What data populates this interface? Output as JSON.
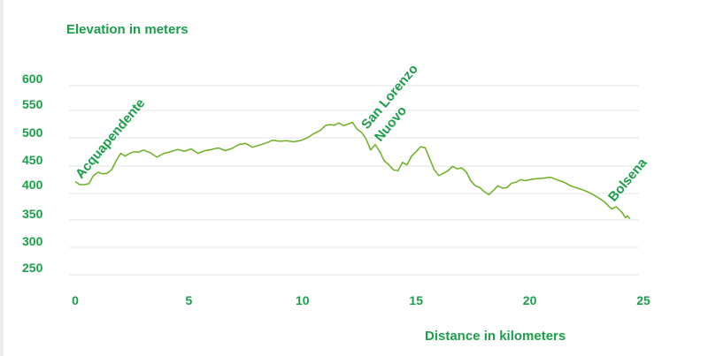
{
  "colors": {
    "text": "#1a9e4a",
    "line": "#6ab023",
    "grid": "#e3e3e3"
  },
  "chart_data": {
    "type": "line",
    "title": "",
    "xlabel": "Distance in kilometers",
    "ylabel": "Elevation in meters",
    "xlim": [
      0,
      25
    ],
    "ylim": [
      250,
      600
    ],
    "xticks": [
      "0",
      "5",
      "10",
      "15",
      "20",
      "25"
    ],
    "yticks": [
      "600",
      "550",
      "500",
      "450",
      "400",
      "350",
      "300",
      "250"
    ],
    "grid": true,
    "series": [
      {
        "x": [
          0,
          0.2,
          0.4,
          0.6,
          0.8,
          1.0,
          1.2,
          1.4,
          1.6,
          1.8,
          2.0,
          2.2,
          2.4,
          2.6,
          2.8,
          3.0,
          3.3,
          3.6,
          3.9,
          4.2,
          4.5,
          4.8,
          5.1,
          5.4,
          5.7,
          6.0,
          6.3,
          6.6,
          6.9,
          7.2,
          7.5,
          7.8,
          8.1,
          8.4,
          8.7,
          9.0,
          9.3,
          9.6,
          9.9,
          10.2,
          10.5,
          10.8,
          11.0,
          11.2,
          11.4,
          11.6,
          11.8,
          12.0,
          12.2,
          12.4,
          12.6,
          12.8,
          13.0,
          13.2,
          13.4,
          13.6,
          13.8,
          14.0,
          14.2,
          14.4,
          14.6,
          14.8,
          15.0,
          15.2,
          15.4,
          15.6,
          15.8,
          16.0,
          16.2,
          16.4,
          16.6,
          16.8,
          17.0,
          17.2,
          17.4,
          17.6,
          17.8,
          18.0,
          18.2,
          18.4,
          18.6,
          18.8,
          19.0,
          19.2,
          19.4,
          19.6,
          19.8,
          20.0,
          20.3,
          20.6,
          20.9,
          21.2,
          21.5,
          21.8,
          22.1,
          22.4,
          22.7,
          23.0,
          23.3,
          23.6,
          23.8,
          24.0,
          24.1,
          24.2,
          24.3,
          24.4
        ],
        "values": [
          406,
          400,
          400,
          402,
          418,
          425,
          422,
          423,
          430,
          448,
          462,
          457,
          462,
          465,
          464,
          468,
          463,
          455,
          462,
          465,
          469,
          466,
          470,
          462,
          467,
          469,
          472,
          467,
          471,
          478,
          480,
          473,
          477,
          481,
          486,
          484,
          485,
          483,
          485,
          490,
          498,
          504,
          512,
          514,
          513,
          517,
          512,
          515,
          518,
          506,
          500,
          488,
          468,
          478,
          465,
          448,
          440,
          430,
          428,
          445,
          440,
          457,
          465,
          474,
          472,
          452,
          430,
          418,
          423,
          428,
          437,
          432,
          434,
          426,
          408,
          398,
          395,
          388,
          383,
          390,
          398,
          394,
          395,
          403,
          405,
          410,
          408,
          410,
          412,
          413,
          415,
          410,
          405,
          398,
          394,
          390,
          385,
          378,
          370,
          358,
          362,
          355,
          350,
          343,
          346,
          341
        ]
      }
    ],
    "annotations": [
      {
        "text": "Acquapendente",
        "x": 0
      },
      {
        "text": "San Lorenzo",
        "x": 12.6
      },
      {
        "text": "Nuovo",
        "x": 12.6
      },
      {
        "text": "Bolsena",
        "x": 24.3
      }
    ]
  }
}
